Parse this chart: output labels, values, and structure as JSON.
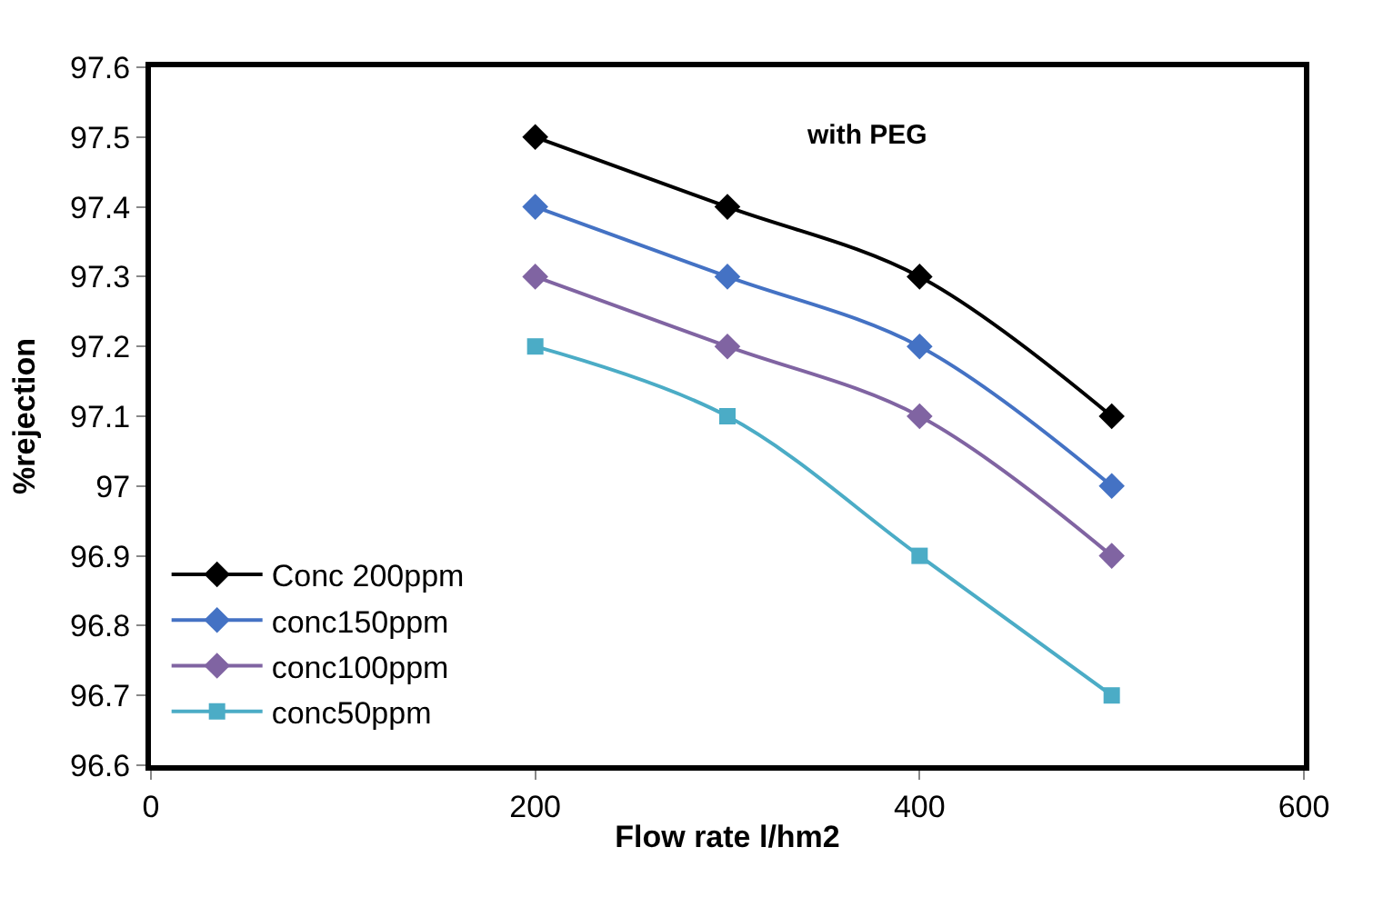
{
  "chart_data": {
    "type": "line",
    "xlabel": "Flow rate l/hm2",
    "ylabel": "%rejection",
    "annotations": [
      "with PEG"
    ],
    "x": [
      200,
      300,
      400,
      500
    ],
    "series": [
      {
        "name": "Conc 200ppm",
        "color": "#000000",
        "marker": "diamond",
        "values": [
          97.5,
          97.4,
          97.3,
          97.1
        ]
      },
      {
        "name": "conc150ppm",
        "color": "#4472c4",
        "marker": "diamond",
        "values": [
          97.4,
          97.3,
          97.2,
          97
        ]
      },
      {
        "name": "conc100ppm",
        "color": "#8064a2",
        "marker": "diamond",
        "values": [
          97.3,
          97.2,
          97.1,
          96.9
        ]
      },
      {
        "name": "conc50ppm",
        "color": "#4bacc6",
        "marker": "square",
        "values": [
          97.2,
          97.1,
          96.9,
          96.7
        ]
      }
    ],
    "xlim": [
      0,
      600
    ],
    "xticks": [
      0,
      200,
      400,
      600
    ],
    "ylim": [
      96.6,
      97.6
    ],
    "yticks": [
      96.6,
      96.7,
      96.8,
      96.9,
      97,
      97.1,
      97.2,
      97.3,
      97.4,
      97.5,
      97.6
    ],
    "legend": "bottom left",
    "line_style": "solid"
  }
}
